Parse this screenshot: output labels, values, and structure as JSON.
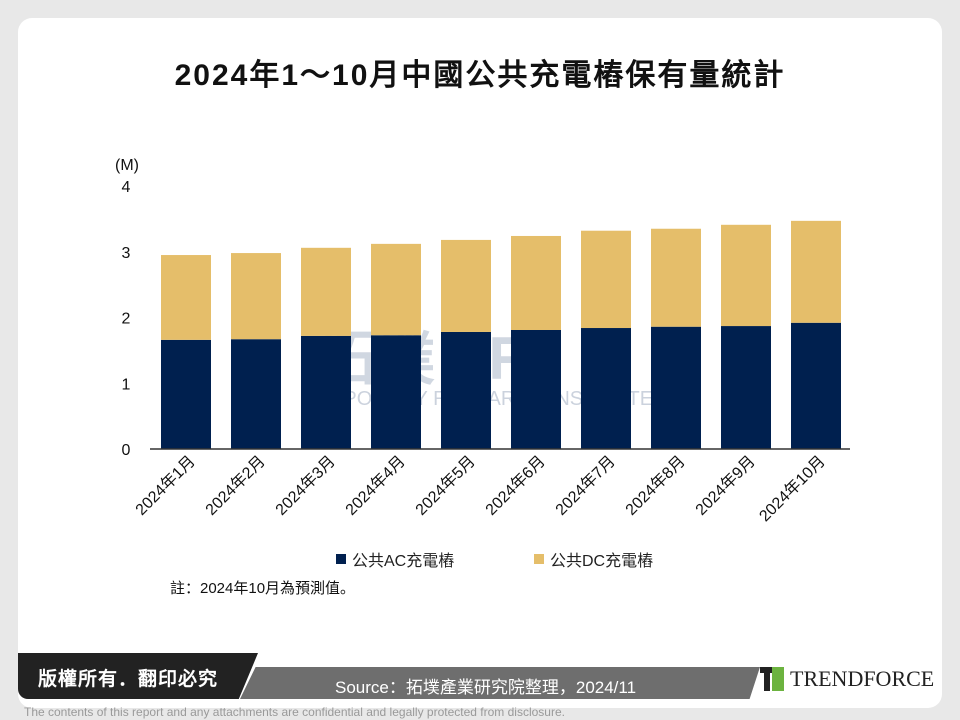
{
  "chart_data": {
    "type": "bar",
    "stacked": true,
    "title": "2024年1～10月中國公共充電樁保有量統計",
    "ylabel": "(M)",
    "ylim": [
      0,
      4
    ],
    "yticks": [
      "0",
      "1",
      "2",
      "3",
      "4"
    ],
    "grid": false,
    "legend_position": "bottom",
    "categories": [
      "2024年1月",
      "2024年2月",
      "2024年3月",
      "2024年4月",
      "2024年5月",
      "2024年6月",
      "2024年7月",
      "2024年8月",
      "2024年9月",
      "2024年10月"
    ],
    "series": [
      {
        "name": "公共AC充電樁",
        "color": "#00204f",
        "values": [
          1.66,
          1.67,
          1.72,
          1.73,
          1.78,
          1.81,
          1.84,
          1.86,
          1.87,
          1.92
        ]
      },
      {
        "name": "公共DC充電樁",
        "color": "#e5be6a",
        "values": [
          1.29,
          1.31,
          1.34,
          1.39,
          1.4,
          1.43,
          1.48,
          1.49,
          1.54,
          1.55
        ]
      }
    ]
  },
  "note": "註：2024年10月為預測值。",
  "watermark": {
    "cn": "拓墣 TRi",
    "en": "TOPOLOGY RESEARCH INSTITUTE"
  },
  "footer": {
    "copyright": "版權所有．翻印必究",
    "source": "Source：拓墣產業研究院整理，2024/11",
    "brand": "TRENDFORCE",
    "disclaimer": "The contents of this report and any attachments are confidential and legally protected from disclosure."
  }
}
